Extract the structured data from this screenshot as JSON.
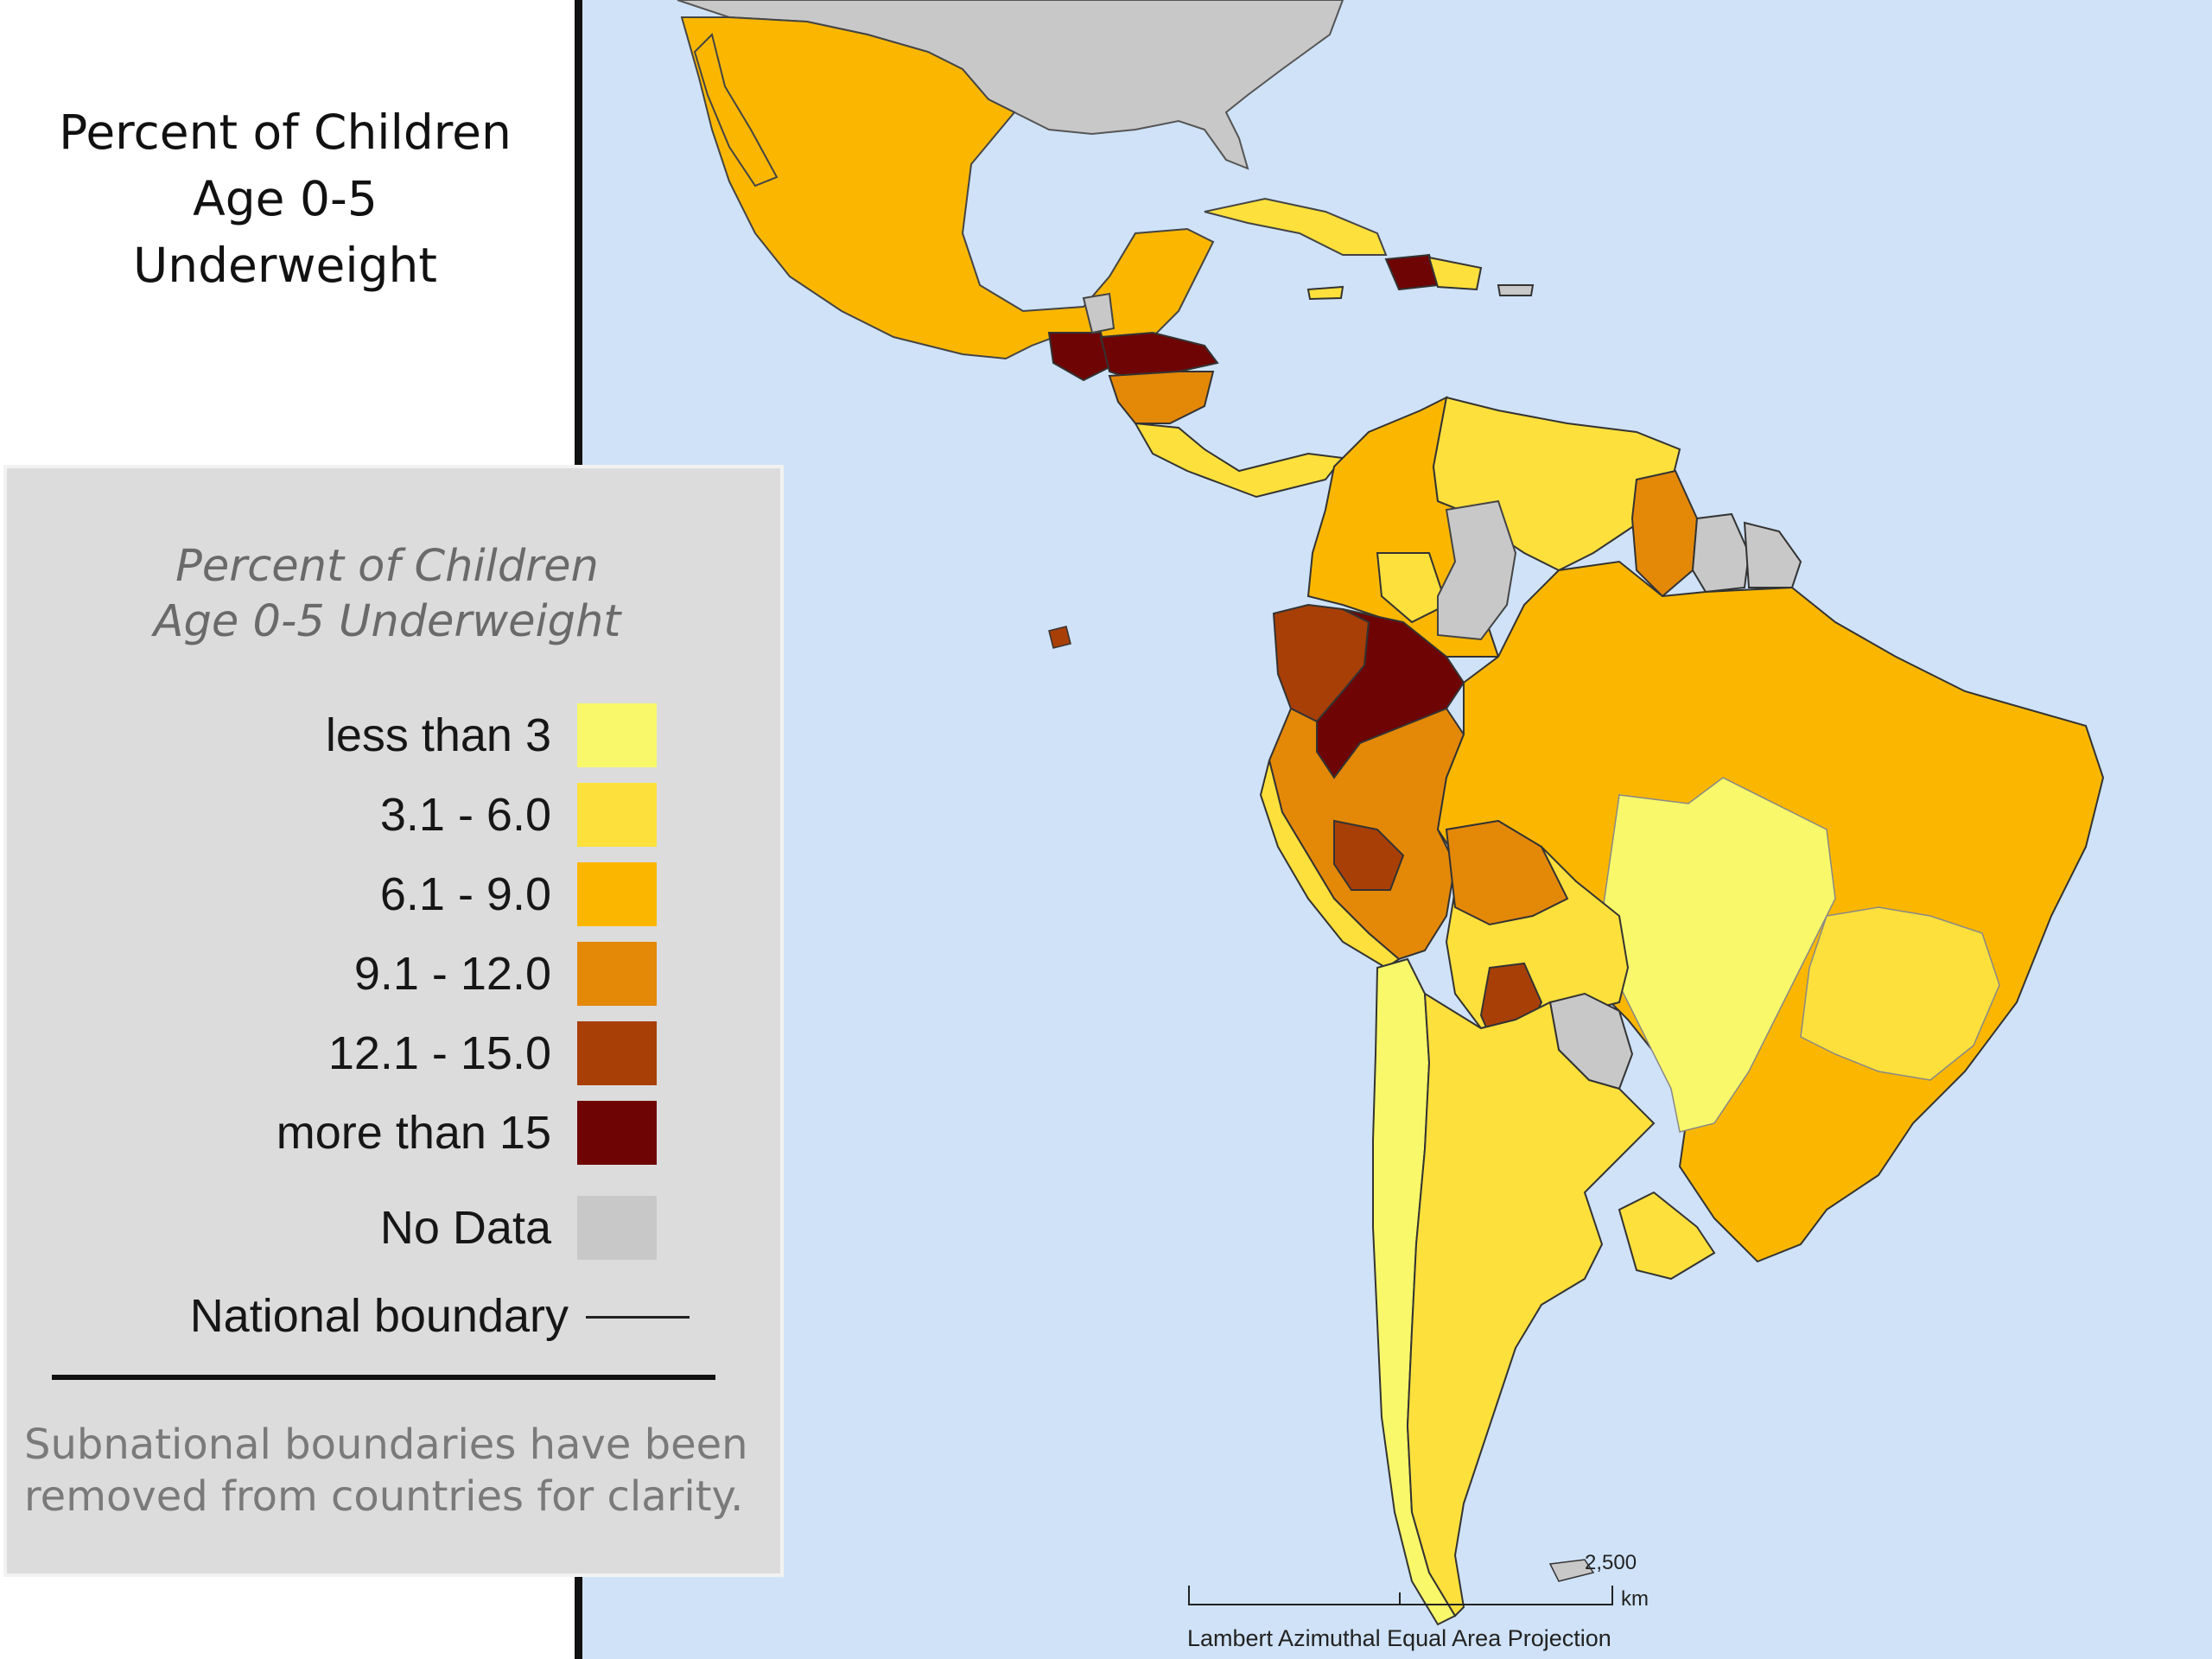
{
  "title": {
    "lines": [
      "Percent of Children",
      "Age 0-5",
      "Underweight"
    ]
  },
  "legend": {
    "title_lines": [
      "Percent of Children",
      "Age 0-5 Underweight"
    ],
    "classes": [
      {
        "label": "less than 3",
        "color": "#f8f86a"
      },
      {
        "label": "3.1 - 6.0",
        "color": "#fde03c"
      },
      {
        "label": "6.1 - 9.0",
        "color": "#fbb700"
      },
      {
        "label": "9.1 - 12.0",
        "color": "#e48808"
      },
      {
        "label": "12.1 - 15.0",
        "color": "#a83f06"
      },
      {
        "label": "more than 15",
        "color": "#6f0404"
      }
    ],
    "no_data": {
      "label": "No Data",
      "color": "#c8c8c8"
    },
    "boundary_label": "National boundary",
    "note_lines": [
      "Subnational boundaries have been",
      "removed from countries for clarity."
    ]
  },
  "map": {
    "ocean_color": "#cfe2f7",
    "scale": {
      "value_label": "2,500",
      "unit": "km"
    },
    "projection": "Lambert Azimuthal Equal Area Projection"
  }
}
